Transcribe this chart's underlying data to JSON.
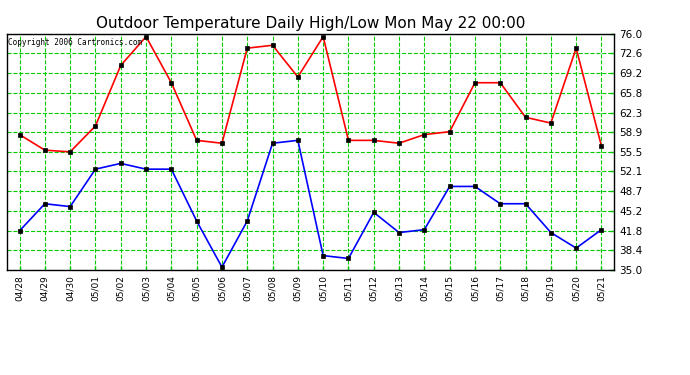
{
  "title": "Outdoor Temperature Daily High/Low Mon May 22 00:00",
  "copyright": "Copyright 2006 Cartronics.com",
  "x_labels": [
    "04/28",
    "04/29",
    "04/30",
    "05/01",
    "05/02",
    "05/03",
    "05/04",
    "05/05",
    "05/06",
    "05/07",
    "05/08",
    "05/09",
    "05/10",
    "05/11",
    "05/12",
    "05/13",
    "05/14",
    "05/15",
    "05/16",
    "05/17",
    "05/18",
    "05/19",
    "05/20",
    "05/21"
  ],
  "high_values": [
    58.5,
    55.8,
    55.5,
    60.0,
    70.5,
    75.5,
    67.5,
    57.5,
    57.0,
    73.5,
    74.0,
    68.5,
    75.5,
    57.5,
    57.5,
    57.0,
    58.5,
    59.0,
    67.5,
    67.5,
    61.5,
    60.5,
    73.5,
    56.5
  ],
  "low_values": [
    41.8,
    46.5,
    46.0,
    52.5,
    53.5,
    52.5,
    52.5,
    43.5,
    35.5,
    43.5,
    57.0,
    57.5,
    37.5,
    37.0,
    45.0,
    41.5,
    42.0,
    49.5,
    49.5,
    46.5,
    46.5,
    41.5,
    38.8,
    42.0
  ],
  "high_color": "#ff0000",
  "low_color": "#0000ff",
  "grid_color": "#00cc00",
  "bg_color": "#ffffff",
  "plot_bg_color": "#ffffff",
  "title_fontsize": 11,
  "yticks": [
    35.0,
    38.4,
    41.8,
    45.2,
    48.7,
    52.1,
    55.5,
    58.9,
    62.3,
    65.8,
    69.2,
    72.6,
    76.0
  ],
  "ylim": [
    35.0,
    76.0
  ],
  "marker": "s",
  "marker_size": 3,
  "line_width": 1.2,
  "fig_width": 6.9,
  "fig_height": 3.75,
  "dpi": 100
}
